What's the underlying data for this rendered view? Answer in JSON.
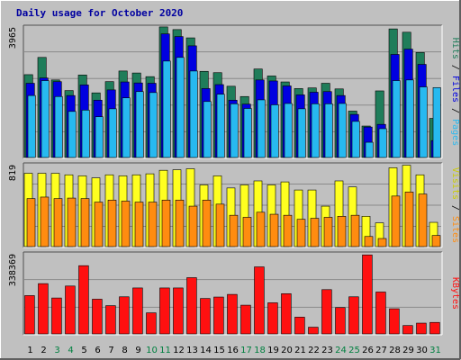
{
  "title": "Daily usage for October 2020",
  "colors": {
    "background": "#c0c0c0",
    "title": "#0000a0",
    "hits": "#1f7d5a",
    "files": "#0000e0",
    "pages": "#27b9f0",
    "visits": "#ffff20",
    "sites": "#ff8c10",
    "kbytes": "#ff1010",
    "weekend_label": "#008040",
    "weekday_label": "#000000"
  },
  "chart_data": [
    {
      "type": "bar",
      "panel": "hits-files-pages",
      "categories": [
        "1",
        "2",
        "3",
        "4",
        "5",
        "6",
        "7",
        "8",
        "9",
        "10",
        "11",
        "12",
        "13",
        "14",
        "15",
        "16",
        "17",
        "18",
        "19",
        "20",
        "21",
        "22",
        "23",
        "24",
        "25",
        "26",
        "27",
        "28",
        "29",
        "30",
        "31"
      ],
      "weekend_days": [
        "3",
        "4",
        "10",
        "11",
        "17",
        "18",
        "24",
        "25",
        "31"
      ],
      "ymax_label": "3965",
      "ylim": [
        0,
        3965
      ],
      "series": [
        {
          "name": "Hits",
          "values": [
            2500,
            3020,
            2340,
            2020,
            2490,
            1950,
            2290,
            2610,
            2550,
            2440,
            3940,
            3860,
            3610,
            2600,
            2560,
            2150,
            1840,
            2670,
            2460,
            2280,
            2080,
            2100,
            2240,
            2070,
            1400,
            950,
            2010,
            3880,
            3780,
            3170,
            1180
          ]
        },
        {
          "name": "Files",
          "values": [
            2240,
            2400,
            2290,
            1870,
            2190,
            1730,
            2040,
            2280,
            2250,
            2240,
            3730,
            3650,
            3370,
            2080,
            2200,
            1730,
            1610,
            2340,
            2310,
            2160,
            1890,
            1970,
            1990,
            1870,
            1300,
            920,
            1000,
            3110,
            3270,
            2810,
            510
          ]
        },
        {
          "name": "Pages",
          "values": [
            1870,
            2320,
            1840,
            1390,
            1430,
            1230,
            1470,
            1800,
            1990,
            1960,
            2910,
            3020,
            2610,
            1690,
            1910,
            1620,
            1480,
            1740,
            1590,
            1630,
            1470,
            1620,
            1620,
            1630,
            1090,
            460,
            870,
            2320,
            2340,
            2130,
            2110
          ]
        }
      ]
    },
    {
      "type": "bar",
      "panel": "visits-sites",
      "categories": [
        "1",
        "2",
        "3",
        "4",
        "5",
        "6",
        "7",
        "8",
        "9",
        "10",
        "11",
        "12",
        "13",
        "14",
        "15",
        "16",
        "17",
        "18",
        "19",
        "20",
        "21",
        "22",
        "23",
        "24",
        "25",
        "26",
        "27",
        "28",
        "29",
        "30",
        "31"
      ],
      "ymax_label": "819",
      "ylim": [
        0,
        819
      ],
      "series": [
        {
          "name": "Visits",
          "values": [
            725,
            725,
            725,
            710,
            700,
            680,
            710,
            700,
            710,
            720,
            755,
            760,
            770,
            610,
            700,
            580,
            610,
            650,
            610,
            640,
            560,
            560,
            400,
            650,
            590,
            300,
            235,
            780,
            805,
            710,
            240
          ]
        },
        {
          "name": "Sites",
          "values": [
            475,
            490,
            475,
            480,
            475,
            440,
            460,
            450,
            440,
            440,
            460,
            460,
            400,
            460,
            420,
            310,
            290,
            340,
            320,
            310,
            270,
            280,
            290,
            300,
            310,
            100,
            80,
            500,
            540,
            520,
            110
          ]
        }
      ]
    },
    {
      "type": "bar",
      "panel": "kbytes",
      "categories": [
        "1",
        "2",
        "3",
        "4",
        "5",
        "6",
        "7",
        "8",
        "9",
        "10",
        "11",
        "12",
        "13",
        "14",
        "15",
        "16",
        "17",
        "18",
        "19",
        "20",
        "21",
        "22",
        "23",
        "24",
        "25",
        "26",
        "27",
        "28",
        "29",
        "30",
        "31"
      ],
      "ymax_label": "338369",
      "ylim": [
        0,
        338369
      ],
      "series": [
        {
          "name": "KBytes",
          "values": [
            160000,
            210000,
            150000,
            200000,
            285000,
            145000,
            118000,
            155000,
            192000,
            88000,
            192000,
            192000,
            235000,
            148000,
            154000,
            165000,
            120000,
            280000,
            130000,
            168000,
            70000,
            28000,
            185000,
            110000,
            155000,
            330000,
            175000,
            105000,
            35000,
            45000,
            48000
          ]
        }
      ]
    }
  ],
  "legend": {
    "panel1": [
      {
        "label": "Hits",
        "color": "#1f7d5a"
      },
      {
        "sep": "/"
      },
      {
        "label": "Files",
        "color": "#0000e0"
      },
      {
        "sep": "/"
      },
      {
        "label": "Pages",
        "color": "#27b9f0"
      }
    ],
    "panel2": [
      {
        "label": "Visits",
        "color": "#cccc00"
      },
      {
        "sep": "/"
      },
      {
        "label": "Sites",
        "color": "#ff8c10"
      }
    ],
    "panel3": [
      {
        "label": "KBytes",
        "color": "#ff1010"
      }
    ]
  }
}
